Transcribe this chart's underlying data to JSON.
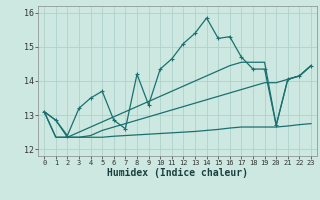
{
  "xlabel": "Humidex (Indice chaleur)",
  "background_color": "#cce8e0",
  "grid_color": "#aacec6",
  "line_color": "#1a7070",
  "xlim": [
    -0.5,
    23.5
  ],
  "ylim": [
    11.8,
    16.2
  ],
  "yticks": [
    12,
    13,
    14,
    15,
    16
  ],
  "xticks": [
    0,
    1,
    2,
    3,
    4,
    5,
    6,
    7,
    8,
    9,
    10,
    11,
    12,
    13,
    14,
    15,
    16,
    17,
    18,
    19,
    20,
    21,
    22,
    23
  ],
  "x_values": [
    0,
    1,
    2,
    3,
    4,
    5,
    6,
    7,
    8,
    9,
    10,
    11,
    12,
    13,
    14,
    15,
    16,
    17,
    18,
    19,
    20,
    21,
    22,
    23
  ],
  "line1_y": [
    13.1,
    12.85,
    12.4,
    13.2,
    13.5,
    13.7,
    12.85,
    12.6,
    14.2,
    13.3,
    14.35,
    14.65,
    15.1,
    15.4,
    15.85,
    15.25,
    15.3,
    14.7,
    14.35,
    14.35,
    12.7,
    14.05,
    14.15,
    14.45
  ],
  "line2_y": [
    13.1,
    12.35,
    12.35,
    12.35,
    12.4,
    12.55,
    12.65,
    12.75,
    12.85,
    12.95,
    13.05,
    13.15,
    13.25,
    13.35,
    13.45,
    13.55,
    13.65,
    13.75,
    13.85,
    13.95,
    13.95,
    14.05,
    14.15,
    14.45
  ],
  "line3_y": [
    13.1,
    12.85,
    12.35,
    12.5,
    12.65,
    12.8,
    12.95,
    13.1,
    13.25,
    13.4,
    13.55,
    13.7,
    13.85,
    14.0,
    14.15,
    14.3,
    14.45,
    14.55,
    14.55,
    14.55,
    12.7,
    14.05,
    14.15,
    14.45
  ],
  "line4_y": [
    13.1,
    12.35,
    12.35,
    12.35,
    12.35,
    12.35,
    12.38,
    12.4,
    12.42,
    12.44,
    12.46,
    12.48,
    12.5,
    12.52,
    12.55,
    12.58,
    12.62,
    12.65,
    12.65,
    12.65,
    12.65,
    12.68,
    12.72,
    12.75
  ]
}
